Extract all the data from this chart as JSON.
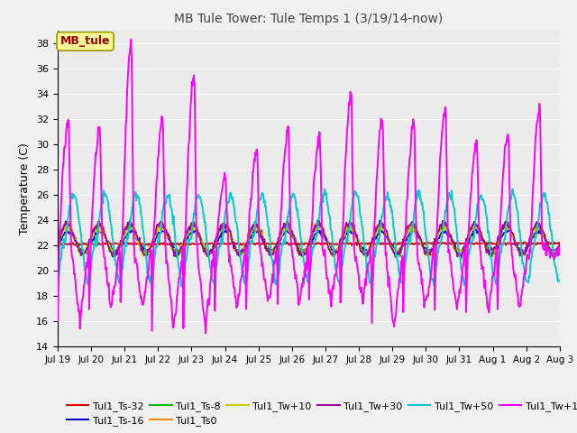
{
  "title": "MB Tule Tower: Tule Temps 1 (3/19/14-now)",
  "ylabel": "Temperature (C)",
  "ylim": [
    14,
    39
  ],
  "yticks": [
    14,
    16,
    18,
    20,
    22,
    24,
    26,
    28,
    30,
    32,
    34,
    36,
    38
  ],
  "x_labels": [
    "Jul 19",
    "Jul 20",
    "Jul 21",
    "Jul 22",
    "Jul 23",
    "Jul 24",
    "Jul 25",
    "Jul 26",
    "Jul 27",
    "Jul 28",
    "Jul 29",
    "Jul 30",
    "Jul 31",
    "Aug 1",
    "Aug 2",
    "Aug 3"
  ],
  "annotation_label": "MB_tule",
  "series_colors": {
    "Tul1_Ts-32": "#dd0000",
    "Tul1_Ts-16": "#0000cc",
    "Tul1_Ts-8": "#00bb00",
    "Tul1_Ts0": "#ff8800",
    "Tul1_Tw+10": "#cccc00",
    "Tul1_Tw+30": "#990099",
    "Tul1_Tw+50": "#00cccc",
    "Tul1_Tw+100": "#ff00ff"
  },
  "legend_ncol_row1": 6,
  "bg_color": "#ebebeb",
  "grid_color": "#ffffff"
}
